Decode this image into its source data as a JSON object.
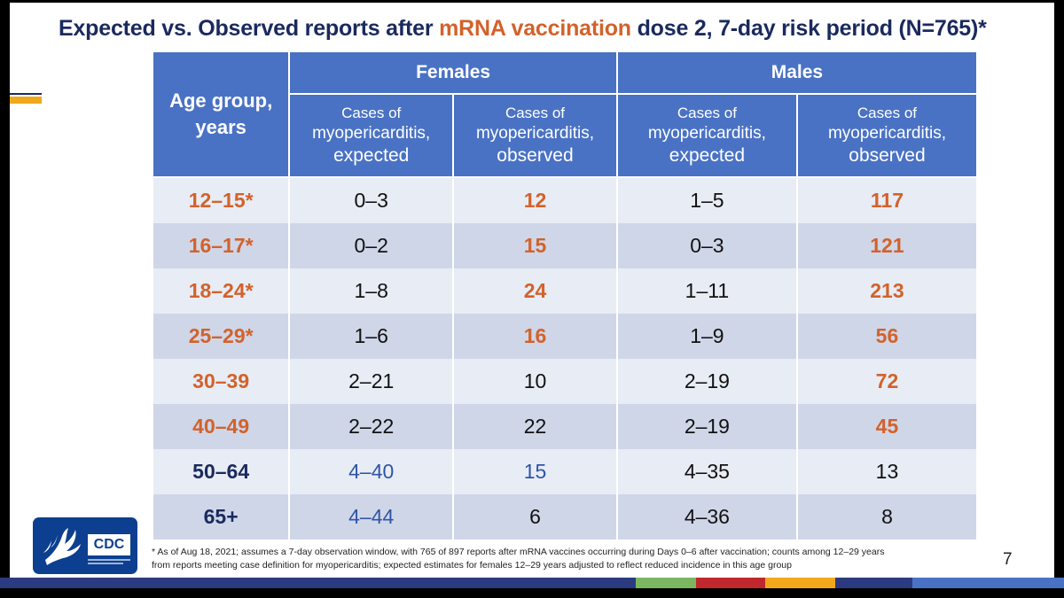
{
  "title": {
    "part1": "Expected vs. Observed reports after ",
    "accent": "mRNA vaccination",
    "part2": " dose 2, 7-day risk period (N=765)*"
  },
  "table": {
    "age_header_line1": "Age group,",
    "age_header_line2": "years",
    "group_headers": [
      "Females",
      "Males"
    ],
    "sub_header": {
      "line1": "Cases of",
      "line2": "myopericarditis,",
      "expected": "expected",
      "observed": "observed"
    },
    "rows": [
      {
        "age": "12–15*",
        "f_exp": "0–3",
        "f_obs": "12",
        "m_exp": "1–5",
        "m_obs": "117"
      },
      {
        "age": "16–17*",
        "f_exp": "0–2",
        "f_obs": "15",
        "m_exp": "0–3",
        "m_obs": "121"
      },
      {
        "age": "18–24*",
        "f_exp": "1–8",
        "f_obs": "24",
        "m_exp": "1–11",
        "m_obs": "213"
      },
      {
        "age": "25–29*",
        "f_exp": "1–6",
        "f_obs": "16",
        "m_exp": "1–9",
        "m_obs": "56"
      },
      {
        "age": "30–39",
        "f_exp": "2–21",
        "f_obs": "10",
        "m_exp": "2–19",
        "m_obs": "72"
      },
      {
        "age": "40–49",
        "f_exp": "2–22",
        "f_obs": "22",
        "m_exp": "2–19",
        "m_obs": "45"
      },
      {
        "age": "50–64",
        "f_exp": "4–40",
        "f_obs": "15",
        "m_exp": "4–35",
        "m_obs": "13"
      },
      {
        "age": "65+",
        "f_exp": "4–44",
        "f_obs": "6",
        "m_exp": "4–36",
        "m_obs": "8"
      }
    ]
  },
  "footnote": {
    "line1": "* As of Aug 18, 2021; assumes a 7-day observation window, with 765 of 897 reports after mRNA vaccines occurring during Days 0–6 after vaccination; counts among 12–29 years",
    "line2": "from reports meeting case definition for myopericarditis; expected estimates for females 12–29 years adjusted to reflect reduced incidence in this age group"
  },
  "page_number": "7",
  "logo_text": "CDC",
  "colors": {
    "header_blue": "#4a72c4",
    "title_navy": "#1a2a5e",
    "accent_orange": "#d2622b",
    "row_light": "#e8ecf4",
    "row_dark": "#cfd6e8",
    "logo_blue": "#0c3f8f"
  },
  "bottom_strip_colors": [
    "#2c3a80",
    "#7bb661",
    "#c0282d",
    "#f0a91c",
    "#2c3a80",
    "#4a72c4"
  ]
}
